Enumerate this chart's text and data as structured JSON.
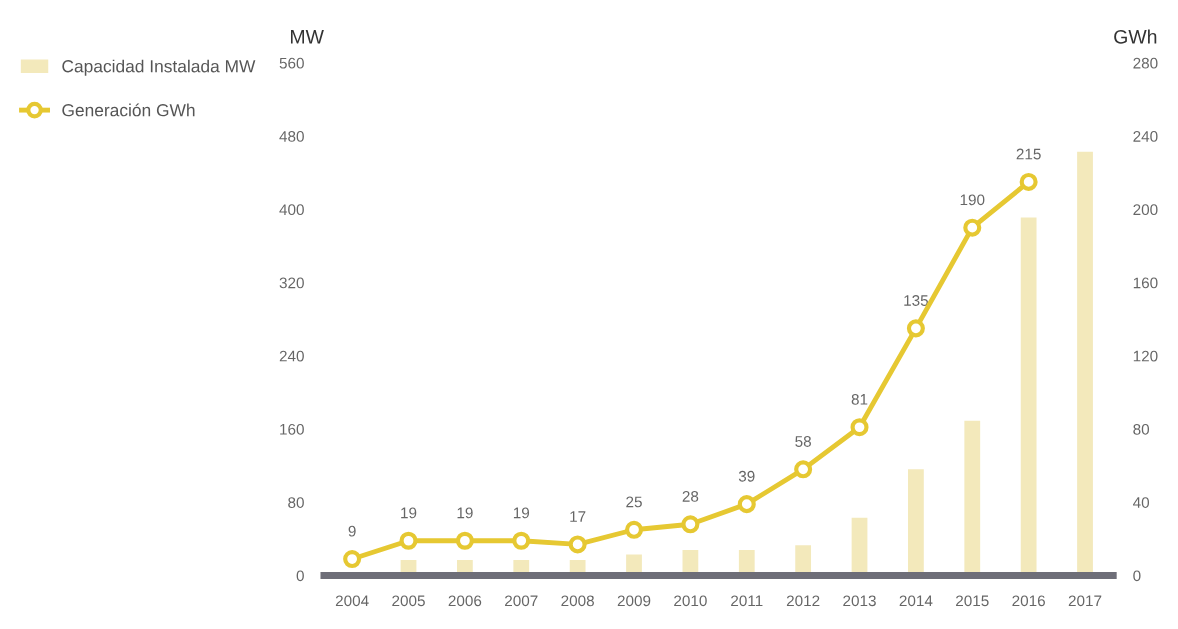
{
  "chart_data": {
    "type": "bar",
    "ylabel": "MW",
    "y2label": "GWh",
    "categories": [
      "2004",
      "2005",
      "2006",
      "2007",
      "2008",
      "2009",
      "2010",
      "2011",
      "2012",
      "2013",
      "2014",
      "2015",
      "2016",
      "2017"
    ],
    "series": [
      {
        "name": "Capacidad Instalada MW",
        "color": "#f3e9bb",
        "values": [
          null,
          17,
          17,
          17,
          17,
          23,
          28,
          28,
          33,
          63,
          116,
          169,
          391,
          463
        ]
      },
      {
        "name": "Generación GWh",
        "type": "line",
        "axis": "y2",
        "color": "#e6c832",
        "marker": "circle",
        "data_labels": true,
        "values": [
          9,
          19,
          19,
          19,
          17,
          25,
          28,
          39,
          58,
          81,
          135,
          190,
          215,
          null
        ]
      }
    ],
    "ylim": [
      0,
      560
    ],
    "yticks": [
      0,
      80,
      160,
      240,
      320,
      400,
      480,
      560
    ],
    "y2lim": [
      0,
      280
    ],
    "y2ticks": [
      0,
      40,
      80,
      120,
      160,
      200,
      240,
      280
    ],
    "grid": false,
    "legend": "top left"
  }
}
